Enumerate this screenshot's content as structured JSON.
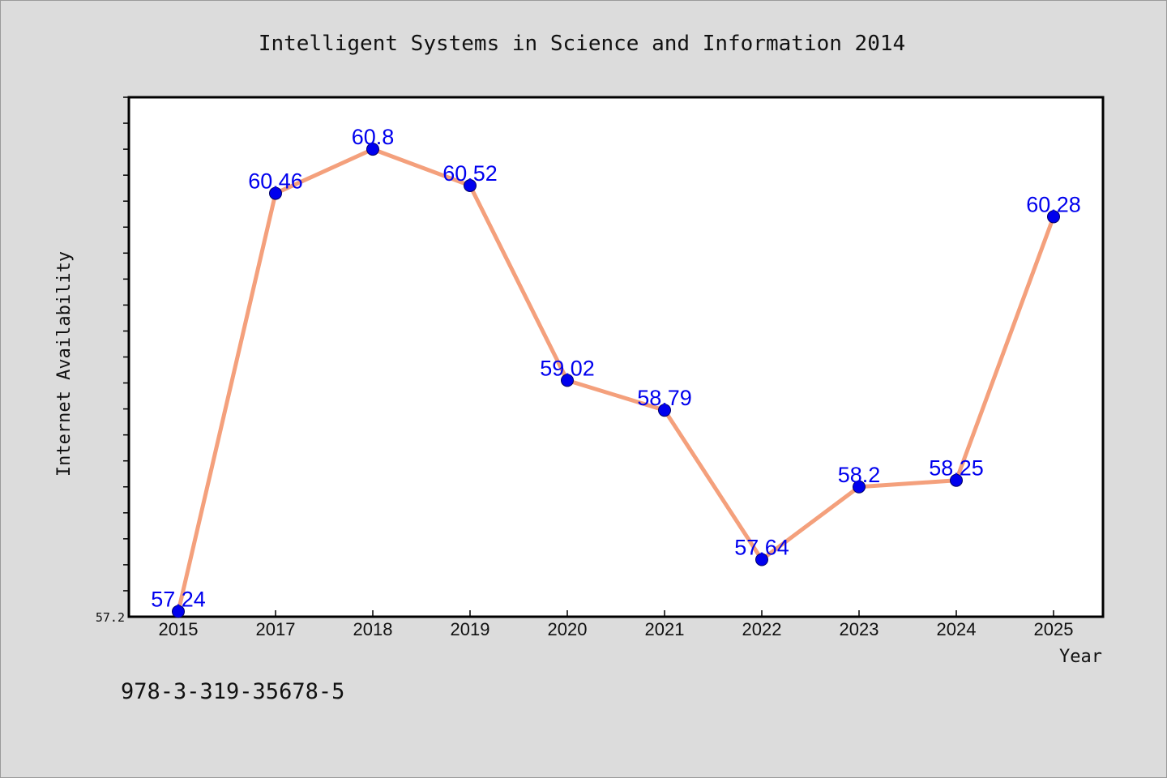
{
  "chart_data": {
    "type": "line",
    "title": "Intelligent Systems in Science and Information 2014",
    "xlabel": "Year",
    "ylabel": "Internet Availability",
    "categories": [
      "2015",
      "2017",
      "2018",
      "2019",
      "2020",
      "2021",
      "2022",
      "2023",
      "2024",
      "2025"
    ],
    "values": [
      57.24,
      60.46,
      60.8,
      60.52,
      59.02,
      58.79,
      57.64,
      58.2,
      58.25,
      60.28
    ],
    "data_labels": [
      "57.24",
      "60.46",
      "60.8",
      "60.52",
      "59.02",
      "58.79",
      "57.64",
      "58.2",
      "58.25",
      "60.28"
    ],
    "ymin_label": "57.2",
    "ylim": [
      57.2,
      61.2
    ],
    "grid": false,
    "legend": "none",
    "line_color": "#f4a07c",
    "marker_color": "#0000ee",
    "label_color": "#0000ee",
    "plot_background": "#ffffff",
    "page_background": "#dcdcdc"
  },
  "footer": {
    "isbn": "978-3-319-35678-5"
  }
}
